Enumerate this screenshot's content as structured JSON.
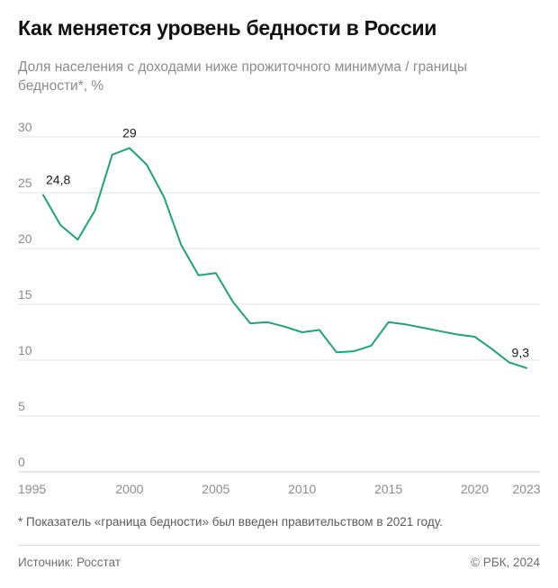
{
  "header": {
    "title": "Как меняется уровень бедности в России",
    "subtitle": "Доля населения с доходами ниже прожиточного минимума / границы бедности*, %"
  },
  "footer": {
    "footnote": "* Показатель «граница бедности» был введен правительством в 2021 году.",
    "source": "Источник: Росстат",
    "copyright": "© РБК, 2024"
  },
  "colors": {
    "line": "#1ea37a",
    "grid": "#e3e3e3",
    "axis": "#cfcfcf",
    "tick": "#8c8c8c"
  },
  "chart_data": {
    "type": "line",
    "title": "Как меняется уровень бедности в России",
    "subtitle": "Доля населения с доходами ниже прожиточного минимума / границы бедности*, %",
    "xlabel": "",
    "ylabel": "",
    "xlim": [
      1995,
      2023
    ],
    "ylim": [
      0,
      30
    ],
    "grid": true,
    "x_ticks": [
      "1995",
      "2000",
      "2005",
      "2010",
      "2015",
      "2020",
      "2023"
    ],
    "y_ticks": [
      "0",
      "5",
      "10",
      "15",
      "20",
      "25",
      "30"
    ],
    "series": [
      {
        "x": [
          1995,
          1996,
          1997,
          1998,
          1999,
          2000,
          2001,
          2002,
          2003,
          2004,
          2005,
          2006,
          2007,
          2008,
          2009,
          2010,
          2011,
          2012,
          2013,
          2014,
          2015,
          2016,
          2017,
          2018,
          2019,
          2020,
          2021,
          2022,
          2023
        ],
        "y": [
          24.8,
          22.1,
          20.8,
          23.4,
          28.4,
          29.0,
          27.5,
          24.6,
          20.3,
          17.6,
          17.8,
          15.2,
          13.3,
          13.4,
          13.0,
          12.5,
          12.7,
          10.7,
          10.8,
          11.3,
          13.4,
          13.2,
          12.9,
          12.6,
          12.3,
          12.1,
          11.0,
          9.8,
          9.3
        ]
      }
    ],
    "annotations": [
      {
        "x": 1995,
        "y": 24.8,
        "text": "24,8"
      },
      {
        "x": 2000,
        "y": 29.0,
        "text": "29"
      },
      {
        "x": 2023,
        "y": 9.3,
        "text": "9,3"
      }
    ]
  }
}
